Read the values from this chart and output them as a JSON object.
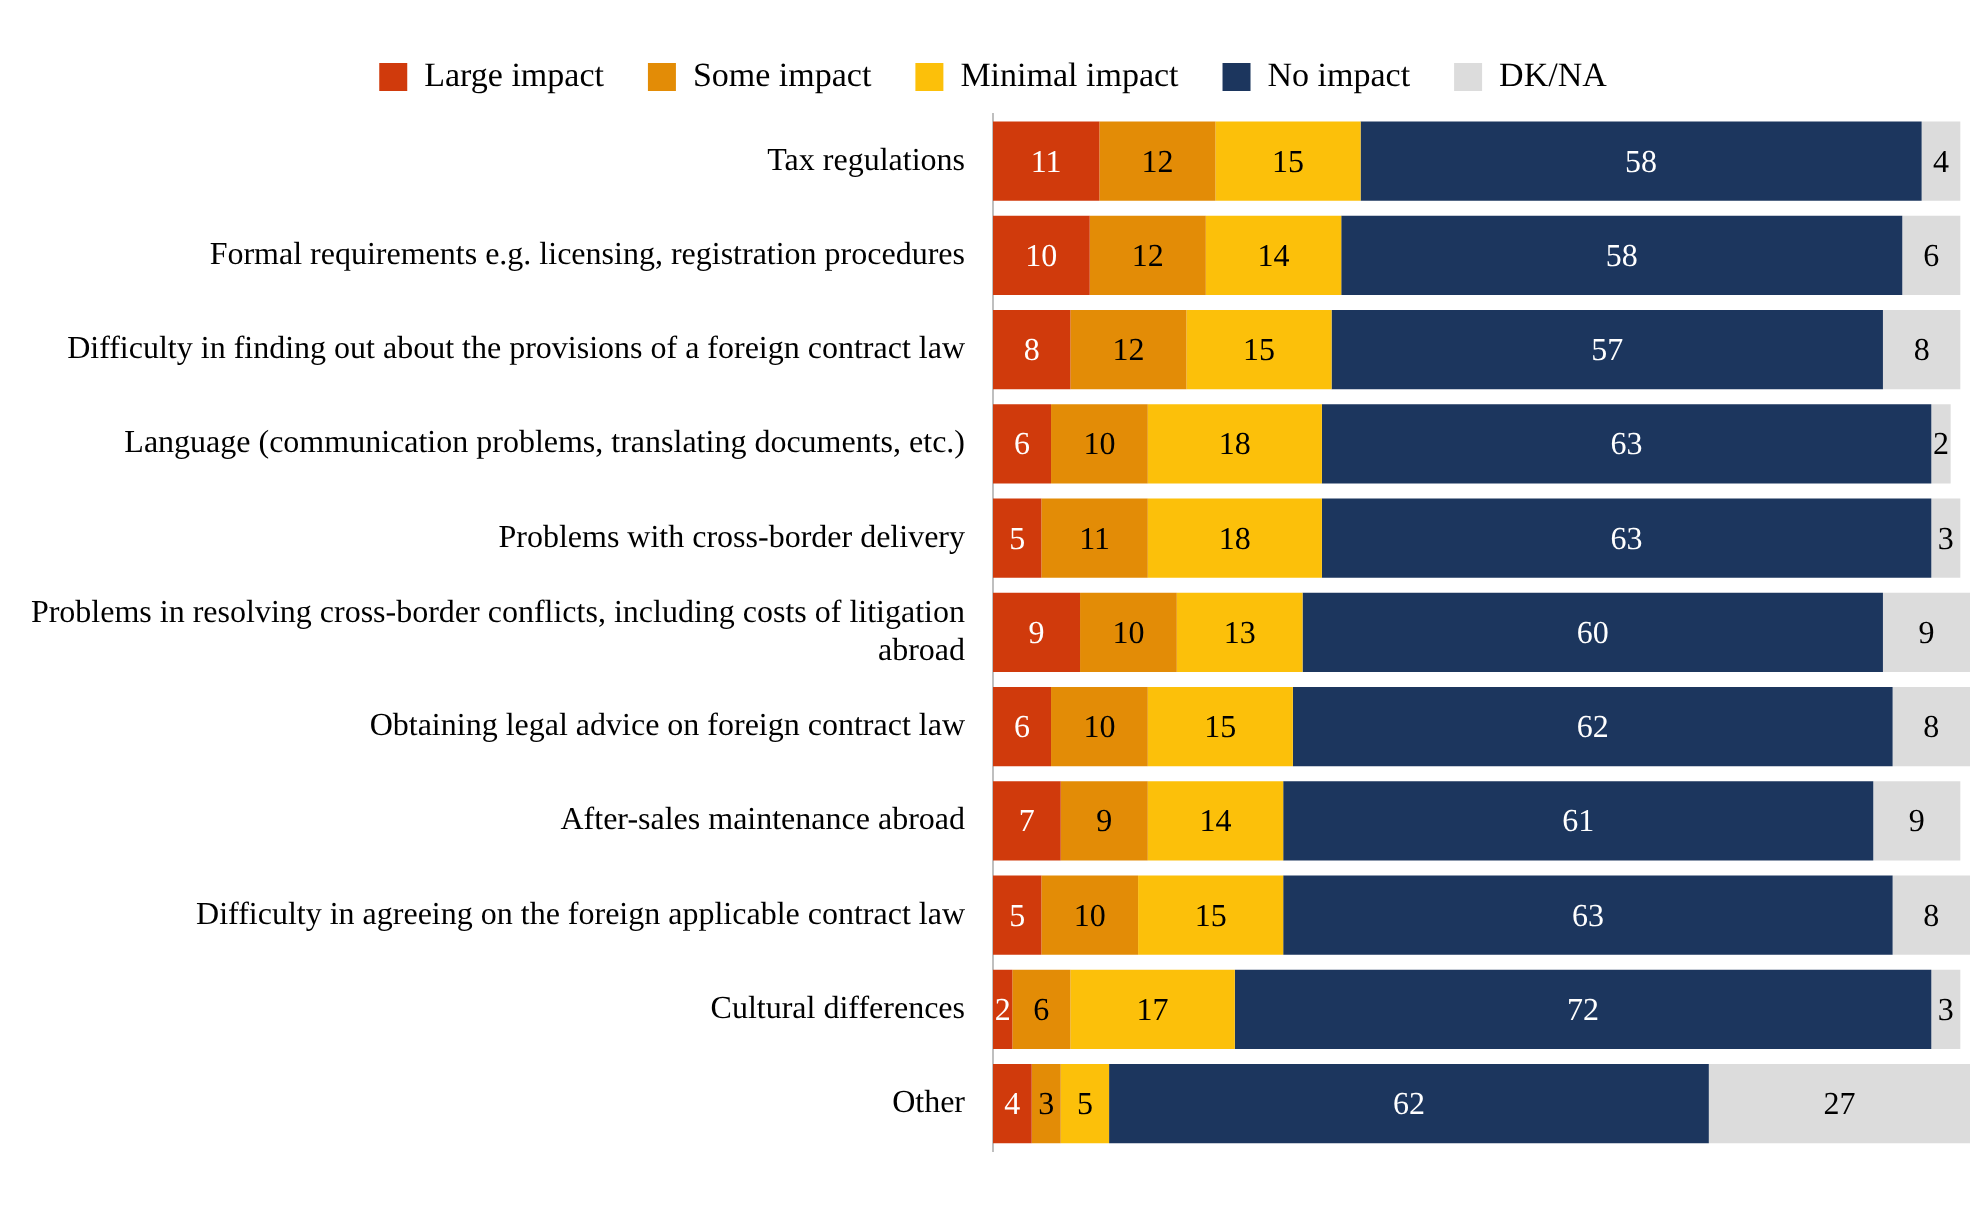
{
  "chart_data": {
    "type": "bar",
    "orientation": "horizontal",
    "stacked": true,
    "data_labels": true,
    "legend": "top",
    "grid": false,
    "tick_labels": "y",
    "xlim": [
      0,
      101
    ],
    "categories": [
      "Tax regulations",
      "Formal requirements e.g. licensing, registration procedures",
      "Difficulty in finding out about the provisions of a foreign contract law",
      "Language (communication problems, translating documents, etc.)",
      "Problems with cross-border delivery",
      "Problems in resolving cross-border conflicts, including costs of litigation abroad",
      "Obtaining legal advice on foreign contract law",
      "After-sales maintenance abroad",
      "Difficulty in agreeing on the foreign applicable contract law",
      "Cultural differences",
      "Other"
    ],
    "series": [
      {
        "name": "Large impact",
        "color": "#d03a0c",
        "values": [
          11,
          10,
          8,
          6,
          5,
          9,
          6,
          7,
          5,
          2,
          4
        ]
      },
      {
        "name": "Some impact",
        "color": "#e38c06",
        "values": [
          12,
          12,
          12,
          10,
          11,
          10,
          10,
          9,
          10,
          6,
          3
        ]
      },
      {
        "name": "Minimal impact",
        "color": "#fcc00a",
        "values": [
          15,
          14,
          15,
          18,
          18,
          13,
          15,
          14,
          15,
          17,
          5
        ]
      },
      {
        "name": "No impact",
        "color": "#1c365e",
        "values": [
          58,
          58,
          57,
          63,
          63,
          60,
          62,
          61,
          63,
          72,
          62
        ]
      },
      {
        "name": "DK/NA",
        "color": "#dcdcdc",
        "values": [
          4,
          6,
          8,
          2,
          3,
          9,
          8,
          9,
          8,
          3,
          27
        ]
      }
    ]
  }
}
